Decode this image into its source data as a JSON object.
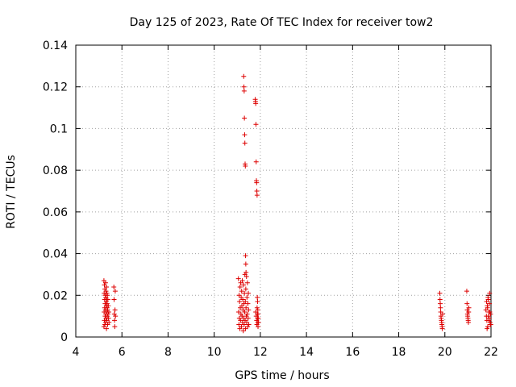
{
  "chart_data": {
    "type": "scatter",
    "title": "Day 125 of 2023, Rate Of TEC Index for receiver tow2",
    "xlabel": "GPS time / hours",
    "ylabel": "ROTI / TECUs",
    "xlim": [
      4,
      22
    ],
    "ylim": [
      0,
      0.14
    ],
    "x_ticks": [
      "4",
      "6",
      "8",
      "10",
      "12",
      "14",
      "16",
      "18",
      "20",
      "22"
    ],
    "y_ticks": [
      "0",
      "0.02",
      "0.04",
      "0.06",
      "0.08",
      "0.1",
      "0.12",
      "0.14"
    ],
    "grid": true,
    "marker": "+",
    "color": "#dd0000",
    "series": [
      {
        "x": [
          5.22,
          5.22,
          5.23,
          5.23,
          5.24,
          5.24,
          5.25,
          5.25,
          5.26,
          5.26,
          5.27,
          5.27,
          5.28,
          5.28,
          5.29,
          5.29,
          5.3,
          5.3,
          5.31,
          5.31,
          5.32,
          5.32,
          5.33,
          5.33,
          5.34,
          5.34,
          5.35,
          5.35,
          5.36,
          5.36,
          5.37,
          5.37,
          5.38,
          5.38,
          5.39,
          5.4,
          5.41,
          5.42,
          5.43,
          5.44,
          5.65,
          5.66,
          5.67,
          5.68,
          5.69,
          5.7,
          5.71,
          5.72,
          11.05,
          11.06,
          11.07,
          11.08,
          11.09,
          11.1,
          11.11,
          11.12,
          11.13,
          11.14,
          11.15,
          11.16,
          11.17,
          11.18,
          11.19,
          11.2,
          11.21,
          11.22,
          11.23,
          11.24,
          11.25,
          11.26,
          11.27,
          11.28,
          11.29,
          11.3,
          11.31,
          11.32,
          11.33,
          11.34,
          11.35,
          11.36,
          11.37,
          11.38,
          11.39,
          11.4,
          11.41,
          11.42,
          11.43,
          11.44,
          11.45,
          11.46,
          11.47,
          11.48,
          11.49,
          11.5,
          11.28,
          11.29,
          11.3,
          11.31,
          11.32,
          11.33,
          11.34,
          11.35,
          11.36,
          11.37,
          11.38,
          11.78,
          11.79,
          11.8,
          11.81,
          11.82,
          11.83,
          11.84,
          11.85,
          11.86,
          11.87,
          11.88,
          11.89,
          11.9,
          11.91,
          11.92,
          11.8,
          11.82,
          11.84,
          11.85,
          11.86,
          11.87,
          11.88,
          11.89,
          11.9,
          19.78,
          19.79,
          19.8,
          19.81,
          19.82,
          19.83,
          19.84,
          19.85,
          19.86,
          19.87,
          19.88,
          19.89,
          19.9,
          20.95,
          20.96,
          20.97,
          20.98,
          20.99,
          21.0,
          21.01,
          21.02,
          21.03,
          21.04,
          21.78,
          21.8,
          21.82,
          21.84,
          21.86,
          21.88,
          21.9,
          21.92,
          21.94,
          21.96,
          21.98,
          21.99,
          21.81,
          21.83,
          21.85,
          21.87,
          21.89,
          21.91,
          21.93,
          21.95,
          21.97
        ],
        "y": [
          0.027,
          0.005,
          0.021,
          0.012,
          0.025,
          0.008,
          0.018,
          0.014,
          0.023,
          0.006,
          0.016,
          0.01,
          0.02,
          0.013,
          0.026,
          0.007,
          0.019,
          0.011,
          0.022,
          0.009,
          0.015,
          0.017,
          0.024,
          0.004,
          0.012,
          0.018,
          0.021,
          0.008,
          0.014,
          0.016,
          0.01,
          0.02,
          0.013,
          0.006,
          0.018,
          0.011,
          0.015,
          0.009,
          0.012,
          0.007,
          0.024,
          0.018,
          0.011,
          0.008,
          0.005,
          0.013,
          0.022,
          0.01,
          0.028,
          0.012,
          0.006,
          0.02,
          0.009,
          0.017,
          0.004,
          0.024,
          0.014,
          0.008,
          0.026,
          0.011,
          0.019,
          0.005,
          0.022,
          0.015,
          0.01,
          0.027,
          0.007,
          0.018,
          0.013,
          0.003,
          0.025,
          0.009,
          0.016,
          0.006,
          0.021,
          0.012,
          0.03,
          0.008,
          0.017,
          0.004,
          0.023,
          0.014,
          0.01,
          0.029,
          0.007,
          0.019,
          0.011,
          0.026,
          0.005,
          0.016,
          0.009,
          0.021,
          0.013,
          0.006,
          0.125,
          0.12,
          0.118,
          0.105,
          0.097,
          0.093,
          0.083,
          0.082,
          0.039,
          0.035,
          0.031,
          0.114,
          0.113,
          0.112,
          0.102,
          0.084,
          0.075,
          0.074,
          0.07,
          0.068,
          0.019,
          0.017,
          0.013,
          0.011,
          0.009,
          0.007,
          0.012,
          0.01,
          0.008,
          0.006,
          0.014,
          0.011,
          0.009,
          0.007,
          0.005,
          0.021,
          0.018,
          0.016,
          0.014,
          0.012,
          0.01,
          0.009,
          0.008,
          0.007,
          0.006,
          0.005,
          0.004,
          0.011,
          0.022,
          0.016,
          0.013,
          0.011,
          0.01,
          0.009,
          0.008,
          0.007,
          0.012,
          0.014,
          0.013,
          0.01,
          0.008,
          0.015,
          0.005,
          0.018,
          0.012,
          0.009,
          0.021,
          0.007,
          0.011,
          0.006,
          0.017,
          0.004,
          0.014,
          0.019,
          0.01,
          0.008,
          0.016,
          0.012,
          0.006
        ]
      }
    ]
  }
}
